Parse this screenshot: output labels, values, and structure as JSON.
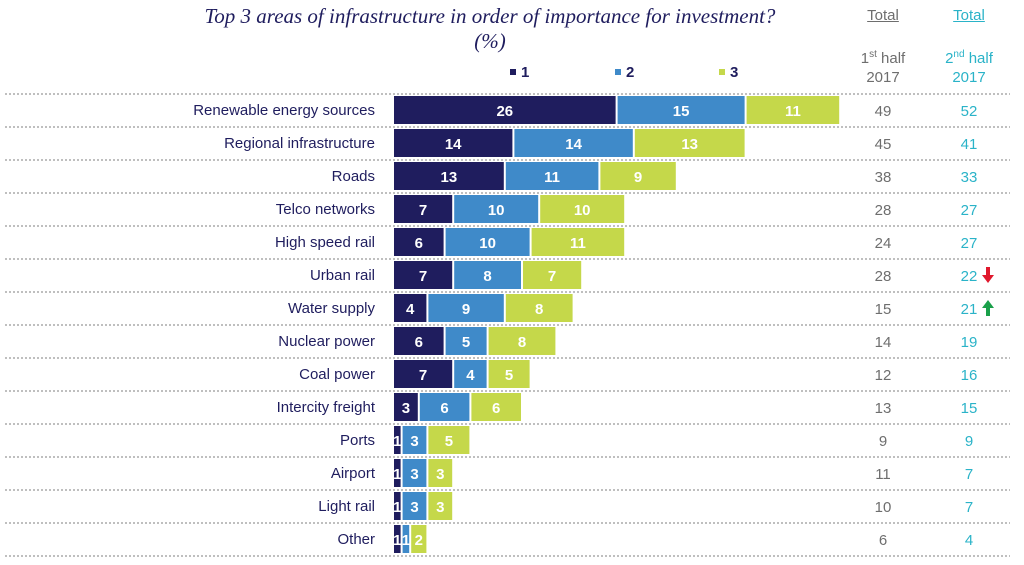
{
  "chart_data": {
    "type": "bar",
    "stacked": true,
    "orientation": "horizontal",
    "title": "Top 3 areas of infrastructure in order of importance for investment? (%)",
    "categories": [
      "Renewable energy sources",
      "Regional infrastructure",
      "Roads",
      "Telco networks",
      "High speed rail",
      "Urban rail",
      "Water supply",
      "Nuclear power",
      "Coal power",
      "Intercity freight",
      "Ports",
      "Airport",
      "Light rail",
      "Other"
    ],
    "series": [
      {
        "name": "1",
        "color": "#1f1d5e",
        "values": [
          26,
          14,
          13,
          7,
          6,
          7,
          4,
          6,
          7,
          3,
          1,
          1,
          1,
          1
        ]
      },
      {
        "name": "2",
        "color": "#3f8ac9",
        "values": [
          15,
          14,
          11,
          10,
          10,
          8,
          9,
          5,
          4,
          6,
          3,
          3,
          3,
          1
        ]
      },
      {
        "name": "3",
        "color": "#c5d84a",
        "values": [
          11,
          13,
          9,
          10,
          11,
          7,
          8,
          8,
          5,
          6,
          5,
          3,
          3,
          2
        ]
      }
    ],
    "legend": "top",
    "columns": {
      "first": {
        "title": "Total",
        "sub1": "1",
        "sup1": "st",
        "sub2": " half",
        "sub3": "2017",
        "color": "#6e6e6e",
        "values": [
          49,
          45,
          38,
          28,
          24,
          28,
          15,
          14,
          12,
          13,
          9,
          11,
          10,
          6
        ]
      },
      "second": {
        "title": "Total",
        "sub1": "2",
        "sup1": "nd",
        "sub2": " half",
        "sub3": "2017",
        "color": "#2ab3c8",
        "values": [
          52,
          41,
          33,
          27,
          27,
          22,
          21,
          19,
          16,
          15,
          9,
          7,
          7,
          4
        ]
      }
    },
    "annotations": [
      {
        "category": "Urban rail",
        "icon": "arrow-down-icon",
        "color": "#e0182d"
      },
      {
        "category": "Water supply",
        "icon": "arrow-up-icon",
        "color": "#1aa04a"
      }
    ]
  }
}
